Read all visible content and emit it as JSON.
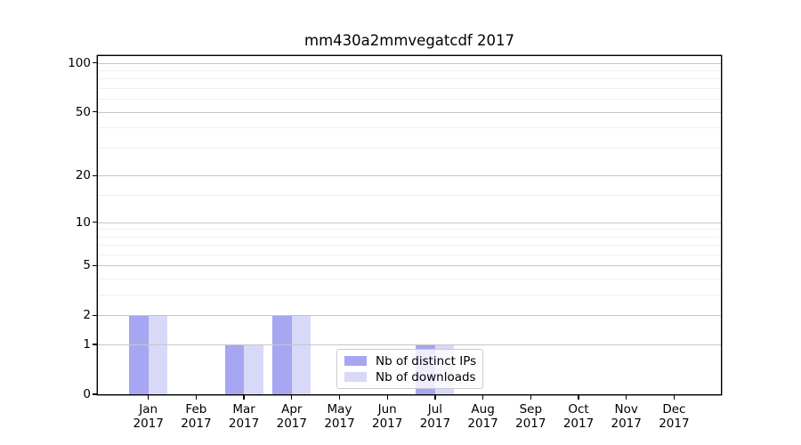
{
  "title": "mm430a2mmvegatcdf 2017",
  "chart_data": {
    "type": "bar",
    "title": "mm430a2mmvegatcdf 2017",
    "categories": [
      {
        "month": "Jan",
        "year": "2017"
      },
      {
        "month": "Feb",
        "year": "2017"
      },
      {
        "month": "Mar",
        "year": "2017"
      },
      {
        "month": "Apr",
        "year": "2017"
      },
      {
        "month": "May",
        "year": "2017"
      },
      {
        "month": "Jun",
        "year": "2017"
      },
      {
        "month": "Jul",
        "year": "2017"
      },
      {
        "month": "Aug",
        "year": "2017"
      },
      {
        "month": "Sep",
        "year": "2017"
      },
      {
        "month": "Oct",
        "year": "2017"
      },
      {
        "month": "Nov",
        "year": "2017"
      },
      {
        "month": "Dec",
        "year": "2017"
      }
    ],
    "series": [
      {
        "name": "Nb of distinct IPs",
        "color": "#a6a6f2",
        "values": [
          2,
          0,
          1,
          2,
          0,
          0,
          1,
          0,
          0,
          0,
          0,
          0
        ]
      },
      {
        "name": "Nb of downloads",
        "color": "#d8d8f8",
        "values": [
          2,
          0,
          1,
          2,
          0,
          0,
          1,
          0,
          0,
          0,
          0,
          0
        ]
      }
    ],
    "xlabel": "",
    "ylabel": "",
    "yscale": "log10(value+1)",
    "ylim": [
      0,
      110
    ],
    "ytick_labels": [
      0,
      1,
      2,
      5,
      10,
      20,
      50,
      100
    ],
    "minor_gridlines": [
      3,
      4,
      6,
      7,
      8,
      9,
      15,
      30,
      40,
      60,
      70,
      80,
      90
    ],
    "grid": "on",
    "legend_position": "lower center, inside axes, overlapping Jul bars"
  },
  "colors": {
    "bar_distinct_ips": "#a6a6f2",
    "bar_downloads": "#d8d8f8",
    "grid_major": "#c6c6c6",
    "grid_minor": "#efefef",
    "axis": "#000000",
    "legend_border": "#cbcbcb"
  }
}
